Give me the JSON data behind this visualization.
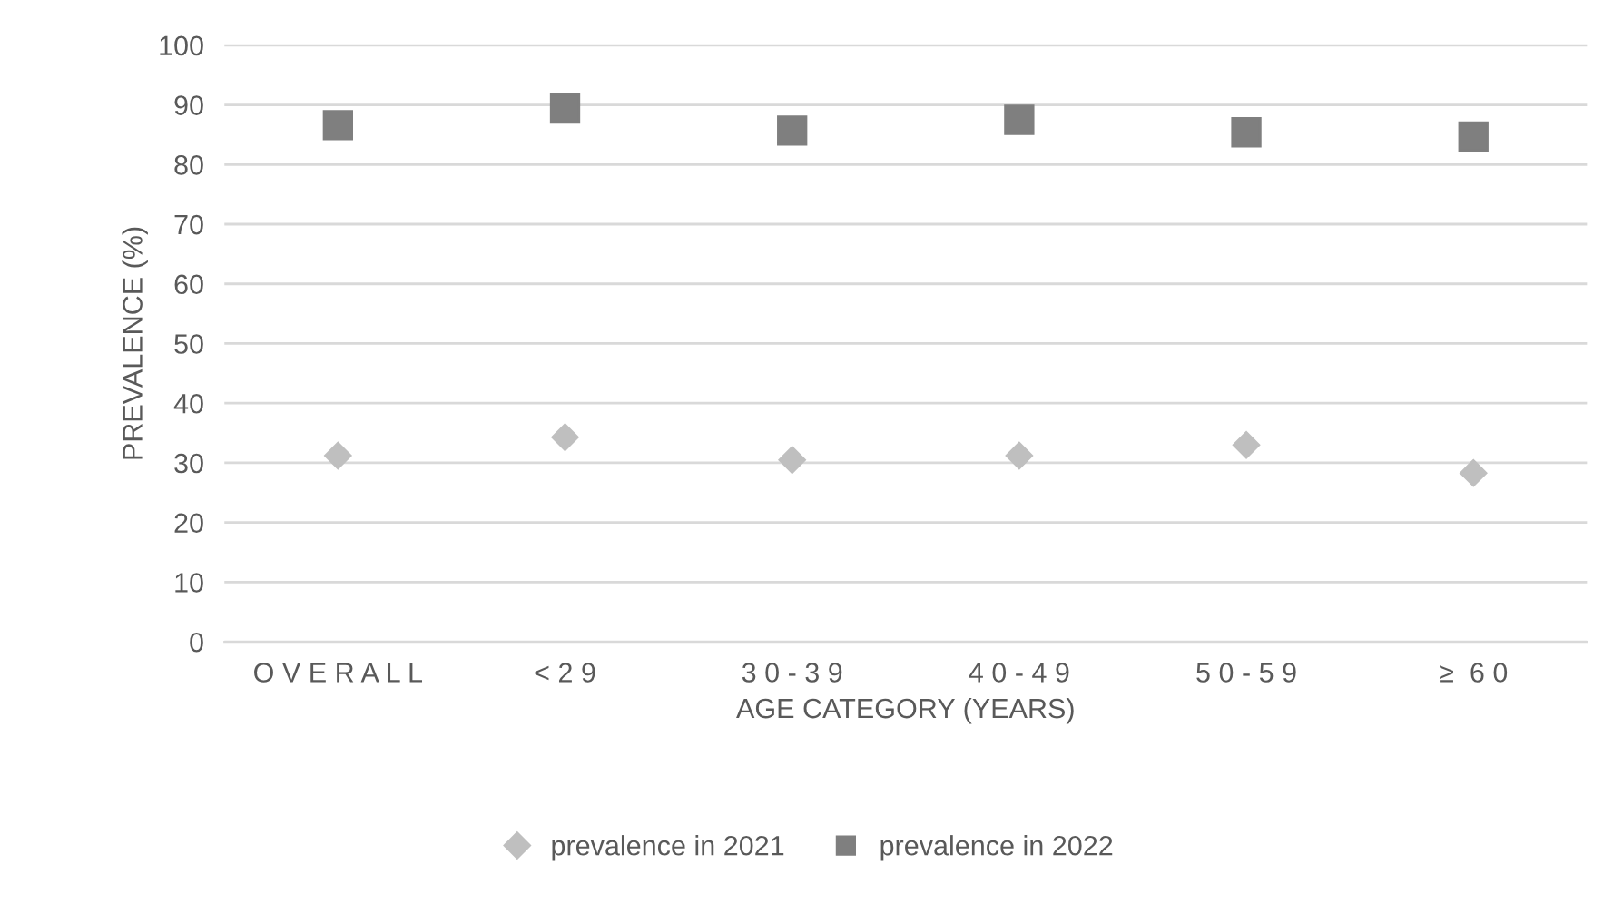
{
  "chart_data": {
    "type": "scatter",
    "xlabel": "AGE CATEGORY (YEARS)",
    "ylabel": "PREVALENCE (%)",
    "categories": [
      "O V E R A L L",
      "< 2 9",
      "3 0 - 3 9",
      "4 0 - 4 9",
      "5 0 - 5 9",
      "≥  6 0"
    ],
    "series": [
      {
        "name": "prevalence in 2021",
        "color": "#bfbfbf",
        "marker": "diamond",
        "values": [
          31.2,
          34.3,
          30.5,
          31.2,
          33.0,
          28.3
        ]
      },
      {
        "name": "prevalence in 2022",
        "color": "#7f7f7f",
        "marker": "square",
        "values": [
          86.6,
          89.4,
          85.7,
          87.5,
          85.4,
          84.7
        ]
      }
    ],
    "ylim": [
      0,
      100
    ],
    "yticks": [
      0,
      10,
      20,
      30,
      40,
      50,
      60,
      70,
      80,
      90,
      100
    ],
    "grid": "y",
    "legend": "bottom"
  }
}
